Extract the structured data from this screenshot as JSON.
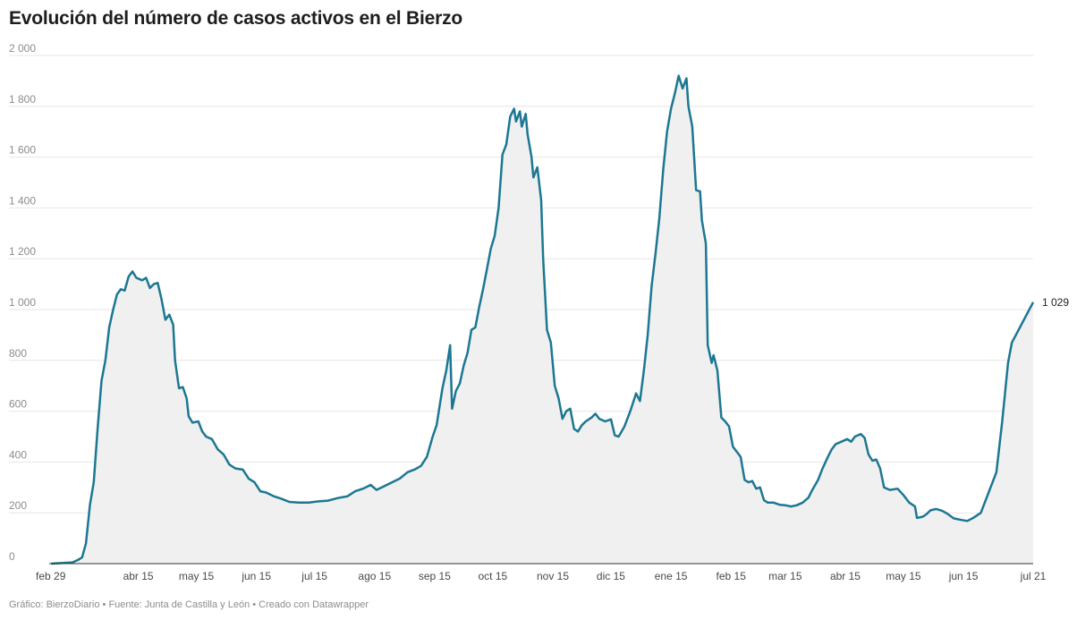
{
  "title": "Evolución del número de casos activos en el Bierzo",
  "footer": "Gráfico: BierzoDiario • Fuente: Junta de Castilla y León • Creado con Datawrapper",
  "colors": {
    "line": "#1c7792",
    "area": "#f0f0f0",
    "grid": "#e6e6e6",
    "axis": "#333333"
  },
  "chart_data": {
    "type": "area",
    "title": "Evolución del número de casos activos en el Bierzo",
    "xlabel": "",
    "ylabel": "",
    "ylim": [
      0,
      2000
    ],
    "xlim": [
      "2020-02-29",
      "2021-07-21"
    ],
    "grid": true,
    "y_ticks": [
      0,
      200,
      400,
      600,
      800,
      1000,
      1200,
      1400,
      1600,
      1800,
      2000
    ],
    "y_tick_labels": [
      "0",
      "200",
      "400",
      "600",
      "800",
      "1 000",
      "1 200",
      "1 400",
      "1 600",
      "1 800",
      "2 000"
    ],
    "x_ticks": [
      {
        "date": "2020-02-29",
        "label": "feb 29"
      },
      {
        "date": "2020-04-15",
        "label": "abr 15"
      },
      {
        "date": "2020-05-15",
        "label": "may 15"
      },
      {
        "date": "2020-06-15",
        "label": "jun 15"
      },
      {
        "date": "2020-07-15",
        "label": "jul 15"
      },
      {
        "date": "2020-08-15",
        "label": "ago 15"
      },
      {
        "date": "2020-09-15",
        "label": "sep 15"
      },
      {
        "date": "2020-10-15",
        "label": "oct 15"
      },
      {
        "date": "2020-11-15",
        "label": "nov 15"
      },
      {
        "date": "2020-12-15",
        "label": "dic 15"
      },
      {
        "date": "2021-01-15",
        "label": "ene 15"
      },
      {
        "date": "2021-02-15",
        "label": "feb 15"
      },
      {
        "date": "2021-03-15",
        "label": "mar 15"
      },
      {
        "date": "2021-04-15",
        "label": "abr 15"
      },
      {
        "date": "2021-05-15",
        "label": "may 15"
      },
      {
        "date": "2021-06-15",
        "label": "jun 15"
      },
      {
        "date": "2021-07-21",
        "label": "jul 21"
      }
    ],
    "end_label": "1 029",
    "series": [
      {
        "points": [
          [
            "2020-03-01",
            0
          ],
          [
            "2020-03-12",
            5
          ],
          [
            "2020-03-15",
            15
          ],
          [
            "2020-03-17",
            25
          ],
          [
            "2020-03-19",
            80
          ],
          [
            "2020-03-21",
            230
          ],
          [
            "2020-03-23",
            320
          ],
          [
            "2020-03-25",
            530
          ],
          [
            "2020-03-27",
            720
          ],
          [
            "2020-03-29",
            800
          ],
          [
            "2020-03-31",
            930
          ],
          [
            "2020-04-02",
            1000
          ],
          [
            "2020-04-04",
            1060
          ],
          [
            "2020-04-06",
            1080
          ],
          [
            "2020-04-08",
            1075
          ],
          [
            "2020-04-10",
            1130
          ],
          [
            "2020-04-12",
            1150
          ],
          [
            "2020-04-14",
            1125
          ],
          [
            "2020-04-17",
            1115
          ],
          [
            "2020-04-19",
            1125
          ],
          [
            "2020-04-21",
            1085
          ],
          [
            "2020-04-23",
            1100
          ],
          [
            "2020-04-25",
            1105
          ],
          [
            "2020-04-27",
            1040
          ],
          [
            "2020-04-29",
            960
          ],
          [
            "2020-05-01",
            980
          ],
          [
            "2020-05-03",
            940
          ],
          [
            "2020-05-04",
            800
          ],
          [
            "2020-05-06",
            690
          ],
          [
            "2020-05-08",
            695
          ],
          [
            "2020-05-10",
            650
          ],
          [
            "2020-05-11",
            580
          ],
          [
            "2020-05-13",
            555
          ],
          [
            "2020-05-16",
            560
          ],
          [
            "2020-05-18",
            520
          ],
          [
            "2020-05-20",
            500
          ],
          [
            "2020-05-23",
            490
          ],
          [
            "2020-05-26",
            450
          ],
          [
            "2020-05-29",
            430
          ],
          [
            "2020-06-01",
            390
          ],
          [
            "2020-06-04",
            375
          ],
          [
            "2020-06-08",
            370
          ],
          [
            "2020-06-11",
            335
          ],
          [
            "2020-06-14",
            320
          ],
          [
            "2020-06-17",
            285
          ],
          [
            "2020-06-20",
            280
          ],
          [
            "2020-06-24",
            265
          ],
          [
            "2020-06-28",
            255
          ],
          [
            "2020-07-02",
            243
          ],
          [
            "2020-07-07",
            240
          ],
          [
            "2020-07-12",
            240
          ],
          [
            "2020-07-17",
            245
          ],
          [
            "2020-07-22",
            248
          ],
          [
            "2020-07-27",
            258
          ],
          [
            "2020-08-01",
            265
          ],
          [
            "2020-08-05",
            285
          ],
          [
            "2020-08-09",
            295
          ],
          [
            "2020-08-13",
            310
          ],
          [
            "2020-08-16",
            290
          ],
          [
            "2020-08-20",
            305
          ],
          [
            "2020-08-24",
            320
          ],
          [
            "2020-08-28",
            335
          ],
          [
            "2020-09-01",
            360
          ],
          [
            "2020-09-05",
            372
          ],
          [
            "2020-09-08",
            385
          ],
          [
            "2020-09-11",
            420
          ],
          [
            "2020-09-14",
            500
          ],
          [
            "2020-09-16",
            545
          ],
          [
            "2020-09-19",
            690
          ],
          [
            "2020-09-21",
            760
          ],
          [
            "2020-09-23",
            860
          ],
          [
            "2020-09-24",
            610
          ],
          [
            "2020-09-26",
            680
          ],
          [
            "2020-09-28",
            710
          ],
          [
            "2020-09-30",
            780
          ],
          [
            "2020-10-02",
            830
          ],
          [
            "2020-10-04",
            920
          ],
          [
            "2020-10-06",
            930
          ],
          [
            "2020-10-08",
            1010
          ],
          [
            "2020-10-10",
            1080
          ],
          [
            "2020-10-12",
            1160
          ],
          [
            "2020-10-14",
            1240
          ],
          [
            "2020-10-16",
            1290
          ],
          [
            "2020-10-18",
            1400
          ],
          [
            "2020-10-20",
            1610
          ],
          [
            "2020-10-22",
            1650
          ],
          [
            "2020-10-24",
            1760
          ],
          [
            "2020-10-26",
            1790
          ],
          [
            "2020-10-27",
            1740
          ],
          [
            "2020-10-29",
            1780
          ],
          [
            "2020-10-30",
            1720
          ],
          [
            "2020-11-01",
            1770
          ],
          [
            "2020-11-02",
            1690
          ],
          [
            "2020-11-04",
            1600
          ],
          [
            "2020-11-05",
            1520
          ],
          [
            "2020-11-07",
            1560
          ],
          [
            "2020-11-09",
            1430
          ],
          [
            "2020-11-10",
            1200
          ],
          [
            "2020-11-12",
            920
          ],
          [
            "2020-11-14",
            870
          ],
          [
            "2020-11-16",
            700
          ],
          [
            "2020-11-18",
            650
          ],
          [
            "2020-11-20",
            570
          ],
          [
            "2020-11-22",
            600
          ],
          [
            "2020-11-24",
            610
          ],
          [
            "2020-11-26",
            530
          ],
          [
            "2020-11-28",
            520
          ],
          [
            "2020-11-30",
            545
          ],
          [
            "2020-12-02",
            560
          ],
          [
            "2020-12-05",
            575
          ],
          [
            "2020-12-07",
            590
          ],
          [
            "2020-12-09",
            570
          ],
          [
            "2020-12-12",
            560
          ],
          [
            "2020-12-15",
            568
          ],
          [
            "2020-12-17",
            505
          ],
          [
            "2020-12-19",
            500
          ],
          [
            "2020-12-22",
            540
          ],
          [
            "2020-12-25",
            600
          ],
          [
            "2020-12-28",
            670
          ],
          [
            "2020-12-30",
            640
          ],
          [
            "2021-01-01",
            760
          ],
          [
            "2021-01-03",
            900
          ],
          [
            "2021-01-05",
            1090
          ],
          [
            "2021-01-07",
            1220
          ],
          [
            "2021-01-09",
            1360
          ],
          [
            "2021-01-11",
            1550
          ],
          [
            "2021-01-13",
            1700
          ],
          [
            "2021-01-15",
            1790
          ],
          [
            "2021-01-17",
            1850
          ],
          [
            "2021-01-19",
            1920
          ],
          [
            "2021-01-21",
            1870
          ],
          [
            "2021-01-23",
            1910
          ],
          [
            "2021-01-24",
            1800
          ],
          [
            "2021-01-26",
            1720
          ],
          [
            "2021-01-28",
            1470
          ],
          [
            "2021-01-30",
            1465
          ],
          [
            "2021-01-31",
            1350
          ],
          [
            "2021-02-02",
            1260
          ],
          [
            "2021-02-03",
            860
          ],
          [
            "2021-02-05",
            790
          ],
          [
            "2021-02-06",
            820
          ],
          [
            "2021-02-08",
            760
          ],
          [
            "2021-02-10",
            575
          ],
          [
            "2021-02-12",
            560
          ],
          [
            "2021-02-14",
            540
          ],
          [
            "2021-02-16",
            460
          ],
          [
            "2021-02-18",
            440
          ],
          [
            "2021-02-20",
            420
          ],
          [
            "2021-02-22",
            330
          ],
          [
            "2021-02-24",
            320
          ],
          [
            "2021-02-26",
            325
          ],
          [
            "2021-02-28",
            295
          ],
          [
            "2021-03-02",
            300
          ],
          [
            "2021-03-04",
            250
          ],
          [
            "2021-03-06",
            240
          ],
          [
            "2021-03-09",
            240
          ],
          [
            "2021-03-12",
            232
          ],
          [
            "2021-03-15",
            230
          ],
          [
            "2021-03-18",
            225
          ],
          [
            "2021-03-21",
            230
          ],
          [
            "2021-03-24",
            240
          ],
          [
            "2021-03-27",
            260
          ],
          [
            "2021-03-29",
            290
          ],
          [
            "2021-04-01",
            330
          ],
          [
            "2021-04-03",
            370
          ],
          [
            "2021-04-06",
            420
          ],
          [
            "2021-04-08",
            450
          ],
          [
            "2021-04-10",
            470
          ],
          [
            "2021-04-13",
            480
          ],
          [
            "2021-04-16",
            490
          ],
          [
            "2021-04-18",
            480
          ],
          [
            "2021-04-20",
            500
          ],
          [
            "2021-04-23",
            510
          ],
          [
            "2021-04-25",
            495
          ],
          [
            "2021-04-27",
            430
          ],
          [
            "2021-04-29",
            405
          ],
          [
            "2021-05-01",
            410
          ],
          [
            "2021-05-03",
            375
          ],
          [
            "2021-05-05",
            300
          ],
          [
            "2021-05-08",
            290
          ],
          [
            "2021-05-12",
            295
          ],
          [
            "2021-05-15",
            270
          ],
          [
            "2021-05-18",
            240
          ],
          [
            "2021-05-21",
            225
          ],
          [
            "2021-05-22",
            180
          ],
          [
            "2021-05-25",
            185
          ],
          [
            "2021-05-27",
            195
          ],
          [
            "2021-05-29",
            210
          ],
          [
            "2021-06-01",
            215
          ],
          [
            "2021-06-04",
            208
          ],
          [
            "2021-06-07",
            195
          ],
          [
            "2021-06-10",
            178
          ],
          [
            "2021-06-14",
            172
          ],
          [
            "2021-06-17",
            168
          ],
          [
            "2021-06-20",
            180
          ],
          [
            "2021-06-24",
            200
          ],
          [
            "2021-06-28",
            280
          ],
          [
            "2021-07-02",
            360
          ],
          [
            "2021-07-05",
            560
          ],
          [
            "2021-07-08",
            790
          ],
          [
            "2021-07-10",
            870
          ],
          [
            "2021-07-21",
            1029
          ]
        ]
      }
    ]
  }
}
